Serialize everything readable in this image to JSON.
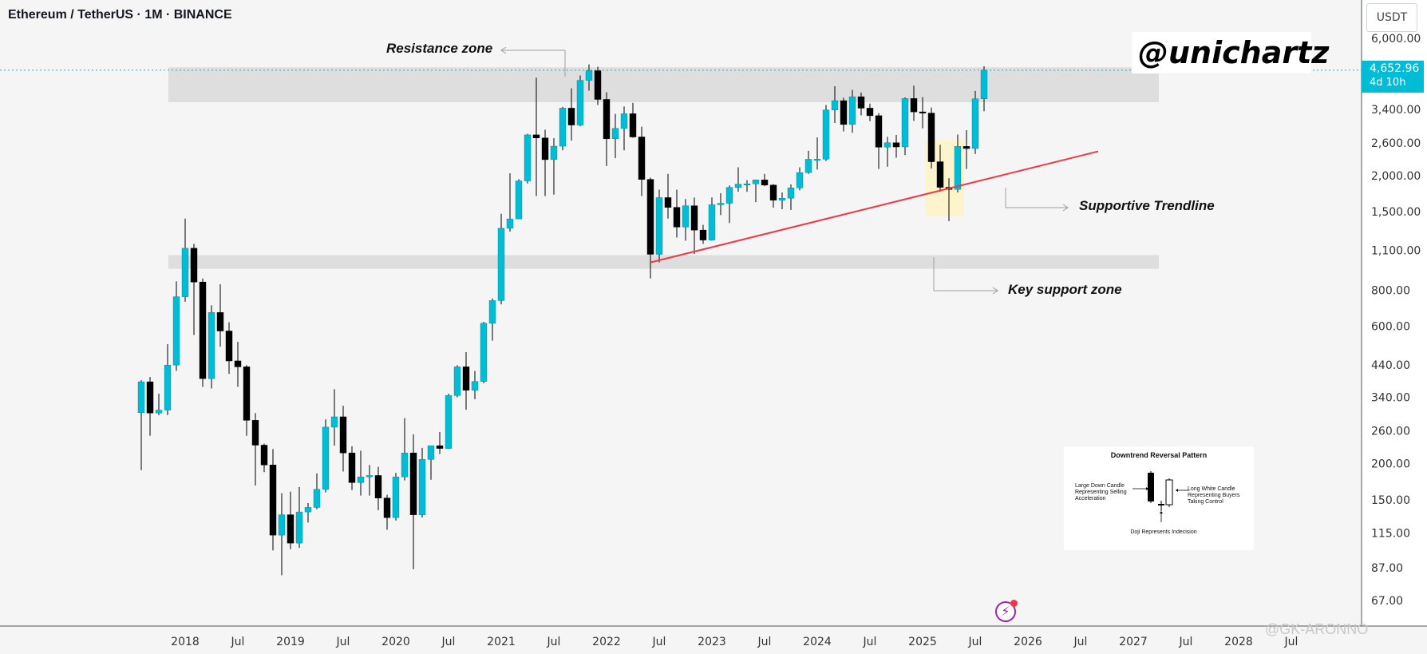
{
  "header": {
    "title": "Ethereum / TetherUS · 1M · BINANCE"
  },
  "axis": {
    "unit": "USDT"
  },
  "price_tag": {
    "price": "4,652.96",
    "countdown": "4d 10h"
  },
  "brand": {
    "handle": "@unichartz"
  },
  "watermark": {
    "text": "@GK-ARONNO"
  },
  "annotations": {
    "resistance": "Resistance zone",
    "trendline": "Supportive Trendline",
    "support": "Key support zone"
  },
  "legend": {
    "title": "Downtrend Reversal Pattern",
    "large_down": "Large Down Candle Representing Selling Acceleration",
    "long_white": "Long White Candle Representing Buyers Taking Control",
    "doji": "Doji Represents Indecision"
  },
  "colors": {
    "bull": "#00bcd4",
    "bear": "#000000",
    "trendline": "#f23645",
    "zone": "#dedede",
    "highlight": "#fff3c4",
    "grid_line": "#00bcd4"
  },
  "chart_data": {
    "type": "candlestick",
    "y_scale": "log",
    "ylim": [
      60,
      6900
    ],
    "y_ticks": [
      "6,000.00",
      "4,652.96",
      "3,400.00",
      "2,600.00",
      "2,000.00",
      "1,500.00",
      "1,100.00",
      "800.00",
      "600.00",
      "440.00",
      "340.00",
      "260.00",
      "200.00",
      "150.00",
      "115.00",
      "87.00",
      "67.00"
    ],
    "y_tick_values": [
      6000,
      4652.96,
      3400,
      2600,
      2000,
      1500,
      1100,
      800,
      600,
      440,
      340,
      260,
      200,
      150,
      115,
      87,
      67
    ],
    "x_ticks": [
      "2018",
      "Jul",
      "2019",
      "Jul",
      "2020",
      "Jul",
      "2021",
      "Jul",
      "2022",
      "Jul",
      "2023",
      "Jul",
      "2024",
      "Jul",
      "2025",
      "Jul",
      "2026",
      "Jul",
      "2027",
      "Jul",
      "2028",
      "Jul"
    ],
    "x_tick_months": [
      "2018-01",
      "2018-07",
      "2019-01",
      "2019-07",
      "2020-01",
      "2020-07",
      "2021-01",
      "2021-07",
      "2022-01",
      "2022-07",
      "2023-01",
      "2023-07",
      "2024-01",
      "2024-07",
      "2025-01",
      "2025-07",
      "2026-01",
      "2026-07",
      "2027-01",
      "2027-07",
      "2028-01",
      "2028-07"
    ],
    "candles": [
      [
        "2017-08",
        301,
        390,
        190,
        385
      ],
      [
        "2017-09",
        385,
        400,
        250,
        300
      ],
      [
        "2017-10",
        300,
        350,
        295,
        307
      ],
      [
        "2017-11",
        307,
        520,
        295,
        440
      ],
      [
        "2017-12",
        440,
        860,
        420,
        760
      ],
      [
        "2018-01",
        760,
        1420,
        730,
        1120
      ],
      [
        "2018-02",
        1120,
        1160,
        560,
        855
      ],
      [
        "2018-03",
        855,
        880,
        370,
        395
      ],
      [
        "2018-04",
        395,
        710,
        365,
        670
      ],
      [
        "2018-05",
        670,
        840,
        510,
        578
      ],
      [
        "2018-06",
        578,
        620,
        410,
        455
      ],
      [
        "2018-07",
        455,
        530,
        370,
        434
      ],
      [
        "2018-08",
        434,
        440,
        250,
        283
      ],
      [
        "2018-09",
        283,
        300,
        168,
        232
      ],
      [
        "2018-10",
        232,
        235,
        187,
        198
      ],
      [
        "2018-11",
        198,
        225,
        100,
        113
      ],
      [
        "2018-12",
        113,
        158,
        82,
        133
      ],
      [
        "2019-01",
        133,
        160,
        101,
        106
      ],
      [
        "2019-02",
        106,
        166,
        102,
        136
      ],
      [
        "2019-03",
        136,
        146,
        125,
        141
      ],
      [
        "2019-04",
        141,
        185,
        139,
        163
      ],
      [
        "2019-05",
        163,
        285,
        159,
        268
      ],
      [
        "2019-06",
        268,
        363,
        231,
        291
      ],
      [
        "2019-07",
        291,
        318,
        188,
        218
      ],
      [
        "2019-08",
        218,
        230,
        162,
        172
      ],
      [
        "2019-09",
        172,
        222,
        155,
        180
      ],
      [
        "2019-10",
        180,
        198,
        155,
        182
      ],
      [
        "2019-11",
        182,
        195,
        138,
        152
      ],
      [
        "2019-12",
        152,
        156,
        118,
        130
      ],
      [
        "2020-01",
        130,
        186,
        127,
        180
      ],
      [
        "2020-02",
        180,
        288,
        175,
        218
      ],
      [
        "2020-03",
        218,
        253,
        86,
        133
      ],
      [
        "2020-04",
        133,
        227,
        130,
        207
      ],
      [
        "2020-05",
        207,
        220,
        176,
        231
      ],
      [
        "2020-06",
        231,
        258,
        216,
        226
      ],
      [
        "2020-07",
        226,
        350,
        225,
        345
      ],
      [
        "2020-08",
        345,
        440,
        340,
        434
      ],
      [
        "2020-09",
        434,
        488,
        308,
        360
      ],
      [
        "2020-10",
        360,
        420,
        335,
        386
      ],
      [
        "2020-11",
        386,
        622,
        380,
        615
      ],
      [
        "2020-12",
        615,
        750,
        535,
        737
      ],
      [
        "2021-01",
        737,
        1475,
        715,
        1314
      ],
      [
        "2021-02",
        1314,
        2040,
        1280,
        1416
      ],
      [
        "2021-03",
        1416,
        1946,
        1425,
        1919
      ],
      [
        "2021-04",
        1919,
        2795,
        1880,
        2773
      ],
      [
        "2021-05",
        2773,
        4380,
        1700,
        2706
      ],
      [
        "2021-06",
        2706,
        2890,
        1700,
        2275
      ],
      [
        "2021-07",
        2275,
        2700,
        1720,
        2533
      ],
      [
        "2021-08",
        2533,
        3470,
        2450,
        3433
      ],
      [
        "2021-09",
        3433,
        4027,
        2650,
        3000
      ],
      [
        "2021-10",
        3000,
        4460,
        2970,
        4288
      ],
      [
        "2021-11",
        4288,
        4870,
        3950,
        4631
      ],
      [
        "2021-12",
        4631,
        4780,
        3520,
        3682
      ],
      [
        "2022-01",
        3682,
        3900,
        2160,
        2687
      ],
      [
        "2022-02",
        2687,
        3280,
        2300,
        2920
      ],
      [
        "2022-03",
        2920,
        3480,
        2450,
        3283
      ],
      [
        "2022-04",
        3283,
        3580,
        2710,
        2727
      ],
      [
        "2022-05",
        2727,
        2960,
        1700,
        1942
      ],
      [
        "2022-06",
        1942,
        1970,
        880,
        1067
      ],
      [
        "2022-07",
        1067,
        1790,
        1000,
        1679
      ],
      [
        "2022-08",
        1679,
        2030,
        1420,
        1553
      ],
      [
        "2022-09",
        1553,
        1790,
        1220,
        1327
      ],
      [
        "2022-10",
        1327,
        1660,
        1190,
        1573
      ],
      [
        "2022-11",
        1573,
        1680,
        1070,
        1295
      ],
      [
        "2022-12",
        1295,
        1350,
        1160,
        1196
      ],
      [
        "2023-01",
        1196,
        1680,
        1190,
        1586
      ],
      [
        "2023-02",
        1586,
        1740,
        1460,
        1605
      ],
      [
        "2023-03",
        1605,
        1850,
        1370,
        1822
      ],
      [
        "2023-04",
        1822,
        2140,
        1760,
        1870
      ],
      [
        "2023-05",
        1870,
        1930,
        1760,
        1874
      ],
      [
        "2023-06",
        1874,
        1940,
        1620,
        1934
      ],
      [
        "2023-07",
        1934,
        2030,
        1840,
        1856
      ],
      [
        "2023-08",
        1856,
        1870,
        1550,
        1645
      ],
      [
        "2023-09",
        1645,
        1750,
        1530,
        1671
      ],
      [
        "2023-10",
        1671,
        1865,
        1520,
        1815
      ],
      [
        "2023-11",
        1815,
        2140,
        1780,
        2051
      ],
      [
        "2023-12",
        2051,
        2440,
        2030,
        2281
      ],
      [
        "2024-01",
        2281,
        2717,
        2100,
        2283
      ],
      [
        "2024-02",
        2283,
        3520,
        2250,
        3384
      ],
      [
        "2024-03",
        3384,
        4090,
        3050,
        3645
      ],
      [
        "2024-04",
        3645,
        3730,
        2850,
        3013
      ],
      [
        "2024-05",
        3013,
        3970,
        2820,
        3762
      ],
      [
        "2024-06",
        3762,
        3890,
        3240,
        3433
      ],
      [
        "2024-07",
        3433,
        3560,
        3090,
        3232
      ],
      [
        "2024-08",
        3232,
        3300,
        2110,
        2513
      ],
      [
        "2024-09",
        2513,
        2730,
        2150,
        2603
      ],
      [
        "2024-10",
        2603,
        2770,
        2310,
        2518
      ],
      [
        "2024-11",
        2518,
        3740,
        2360,
        3708
      ],
      [
        "2024-12",
        3708,
        4110,
        3100,
        3332
      ],
      [
        "2025-01",
        3332,
        3750,
        2920,
        3300
      ],
      [
        "2025-02",
        3300,
        3450,
        2120,
        2237
      ],
      [
        "2025-03",
        2237,
        2560,
        1760,
        1823
      ],
      [
        "2025-04",
        1823,
        1960,
        1390,
        1793
      ],
      [
        "2025-05",
        1793,
        2780,
        1750,
        2528
      ],
      [
        "2025-06",
        2528,
        2880,
        2110,
        2486
      ],
      [
        "2025-07",
        2486,
        3940,
        2380,
        3700
      ],
      [
        "2025-08",
        3700,
        4800,
        3350,
        4652.96
      ]
    ],
    "resistance_zone": [
      3600,
      4760
    ],
    "support_zone": [
      950,
      1060
    ],
    "highlight": {
      "from": "2025-02",
      "to": "2025-05",
      "low": 1450,
      "high": 2650
    },
    "trendline": [
      [
        "2022-06",
        1000
      ],
      [
        "2026-09",
        2430
      ]
    ],
    "current_price": 4652.96
  }
}
